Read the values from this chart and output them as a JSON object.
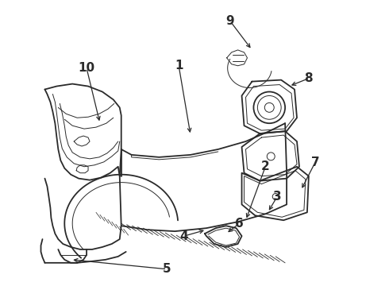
{
  "bg_color": "#ffffff",
  "line_color": "#2a2a2a",
  "line_width": 1.3,
  "thin_line": 0.7,
  "label_fontsize": 11,
  "figsize": [
    4.9,
    3.6
  ],
  "dpi": 100
}
